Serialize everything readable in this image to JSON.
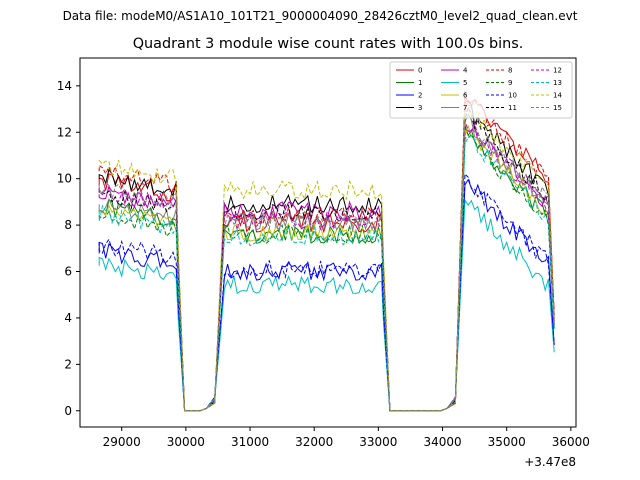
{
  "header": {
    "data_file": "Data file: modeM0/AS1A10_101T21_9000004090_28426cztM0_level2_quad_clean.evt"
  },
  "chart_data": {
    "type": "line",
    "title": "Quadrant 3 module wise count rates with 100.0s bins.",
    "xlabel": "",
    "ylabel": "",
    "x_offset_label": "+3.47e8",
    "xlim": [
      28350,
      36080
    ],
    "ylim": [
      -0.7,
      15.2
    ],
    "x_ticks": [
      29000,
      30000,
      31000,
      32000,
      33000,
      34000,
      35000,
      36000
    ],
    "x_tick_labels": [
      "29000",
      "30000",
      "31000",
      "32000",
      "33000",
      "34000",
      "35000",
      "36000"
    ],
    "y_ticks": [
      0,
      2,
      4,
      6,
      8,
      10,
      12,
      14
    ],
    "y_tick_labels": [
      "0",
      "2",
      "4",
      "6",
      "8",
      "10",
      "12",
      "14"
    ],
    "legend_position": "top-right",
    "segments": [
      {
        "x_start": 28650,
        "x_end": 29850
      },
      {
        "x_start": 30600,
        "x_end": 33050
      },
      {
        "x_start": 34350,
        "x_end": 35650
      }
    ],
    "series": [
      {
        "name": "0",
        "color": "#e00000",
        "dash": "solid",
        "levels": [
          9.3,
          8.1,
          11.8
        ]
      },
      {
        "name": "1",
        "color": "#008000",
        "dash": "solid",
        "levels": [
          8.2,
          7.6,
          10.2
        ]
      },
      {
        "name": "2",
        "color": "#0000ff",
        "dash": "solid",
        "levels": [
          6.3,
          6.0,
          8.1
        ]
      },
      {
        "name": "3",
        "color": "#000000",
        "dash": "solid",
        "levels": [
          9.5,
          8.9,
          11.3
        ]
      },
      {
        "name": "4",
        "color": "#bf00bf",
        "dash": "solid",
        "levels": [
          8.8,
          8.6,
          10.6
        ]
      },
      {
        "name": "5",
        "color": "#00bfbf",
        "dash": "solid",
        "levels": [
          5.7,
          5.4,
          7.2
        ]
      },
      {
        "name": "6",
        "color": "#bfbf00",
        "dash": "solid",
        "levels": [
          8.0,
          7.7,
          10.4
        ]
      },
      {
        "name": "7",
        "color": "#7f7f7f",
        "dash": "solid",
        "levels": [
          8.3,
          8.1,
          10.7
        ]
      },
      {
        "name": "8",
        "color": "#e00000",
        "dash": "dashed",
        "levels": [
          9.7,
          8.4,
          11.7
        ]
      },
      {
        "name": "9",
        "color": "#008000",
        "dash": "dashed",
        "levels": [
          7.8,
          7.6,
          10.1
        ]
      },
      {
        "name": "10",
        "color": "#0000ff",
        "dash": "dashed",
        "levels": [
          6.6,
          6.1,
          8.2
        ]
      },
      {
        "name": "11",
        "color": "#000000",
        "dash": "dashed",
        "levels": [
          8.7,
          8.5,
          11.0
        ]
      },
      {
        "name": "12",
        "color": "#bf00bf",
        "dash": "dashed",
        "levels": [
          8.9,
          8.2,
          10.6
        ]
      },
      {
        "name": "13",
        "color": "#00bfbf",
        "dash": "dashed",
        "levels": [
          7.9,
          7.5,
          10.1
        ]
      },
      {
        "name": "14",
        "color": "#bfbf00",
        "dash": "dashed",
        "levels": [
          10.0,
          9.5,
          11.4
        ]
      },
      {
        "name": "15",
        "color": "#7f7f7f",
        "dash": "dashed",
        "levels": [
          9.0,
          8.2,
          10.8
        ]
      }
    ]
  }
}
